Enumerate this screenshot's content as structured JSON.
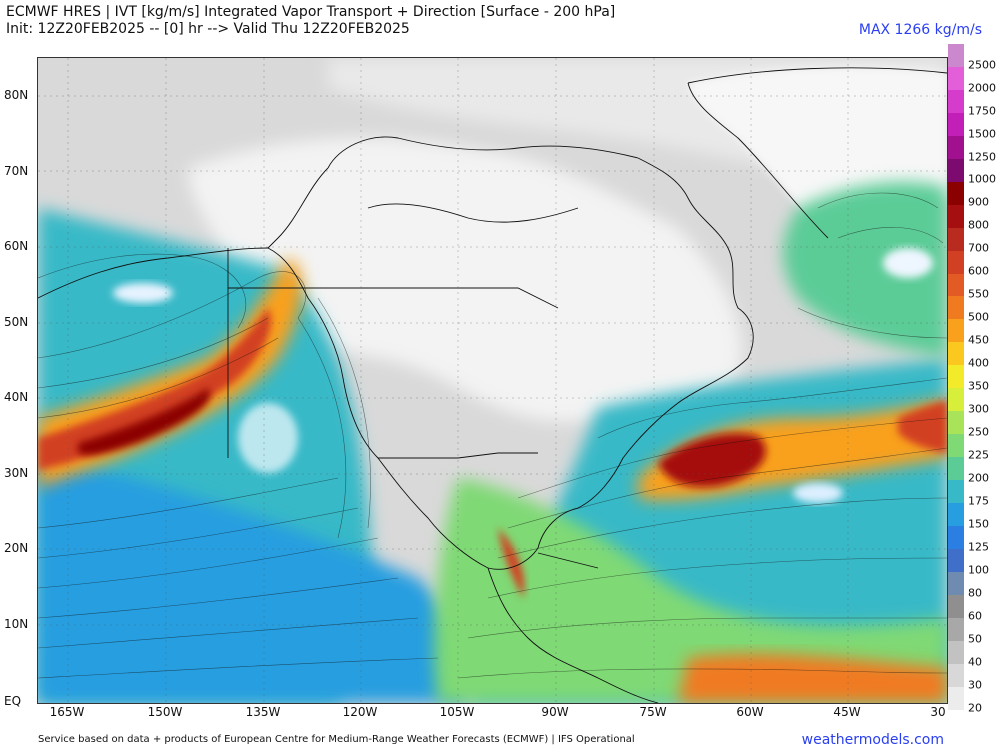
{
  "header": {
    "line1": "ECMWF HRES | IVT [kg/m/s] Integrated Vapor Transport + Direction [Surface - 200 hPa]",
    "line2": "Init: 12Z20FEB2025 -- [0] hr --> Valid Thu 12Z20FEB2025",
    "max": "MAX 1266 kg/m/s"
  },
  "axes": {
    "lat_labels": [
      "80N",
      "70N",
      "60N",
      "50N",
      "40N",
      "30N",
      "20N",
      "10N",
      "EQ"
    ],
    "lon_labels": [
      "165W",
      "150W",
      "135W",
      "120W",
      "105W",
      "90W",
      "75W",
      "60W",
      "45W",
      "30"
    ]
  },
  "colorbar": {
    "levels": [
      "2500",
      "2000",
      "1750",
      "1500",
      "1250",
      "1000",
      "900",
      "800",
      "700",
      "600",
      "550",
      "500",
      "450",
      "400",
      "350",
      "300",
      "250",
      "225",
      "200",
      "175",
      "150",
      "125",
      "100",
      "80",
      "60",
      "50",
      "40",
      "30",
      "20"
    ],
    "colors": [
      "#cc88cc",
      "#e25fd9",
      "#d63ccc",
      "#c21fb8",
      "#a0108f",
      "#7d0a6f",
      "#8b0000",
      "#a50f0f",
      "#b92b1e",
      "#d24024",
      "#e25a24",
      "#f07a20",
      "#f9a01c",
      "#fbc81f",
      "#f3ea2a",
      "#d7ef3b",
      "#a9e35a",
      "#7fd975",
      "#5ccc97",
      "#37b9c7",
      "#279ee0",
      "#2b7fe2",
      "#3f6fc8",
      "#6f8bb0",
      "#8f8f8f",
      "#a8a8a8",
      "#c2c2c2",
      "#d8d8d8",
      "#ececec"
    ]
  },
  "footer": {
    "credit": "Service based on data + products of European Centre for Medium-Range Weather Forecasts (ECMWF) | IFS Operational",
    "site": "weathermodels.com"
  }
}
